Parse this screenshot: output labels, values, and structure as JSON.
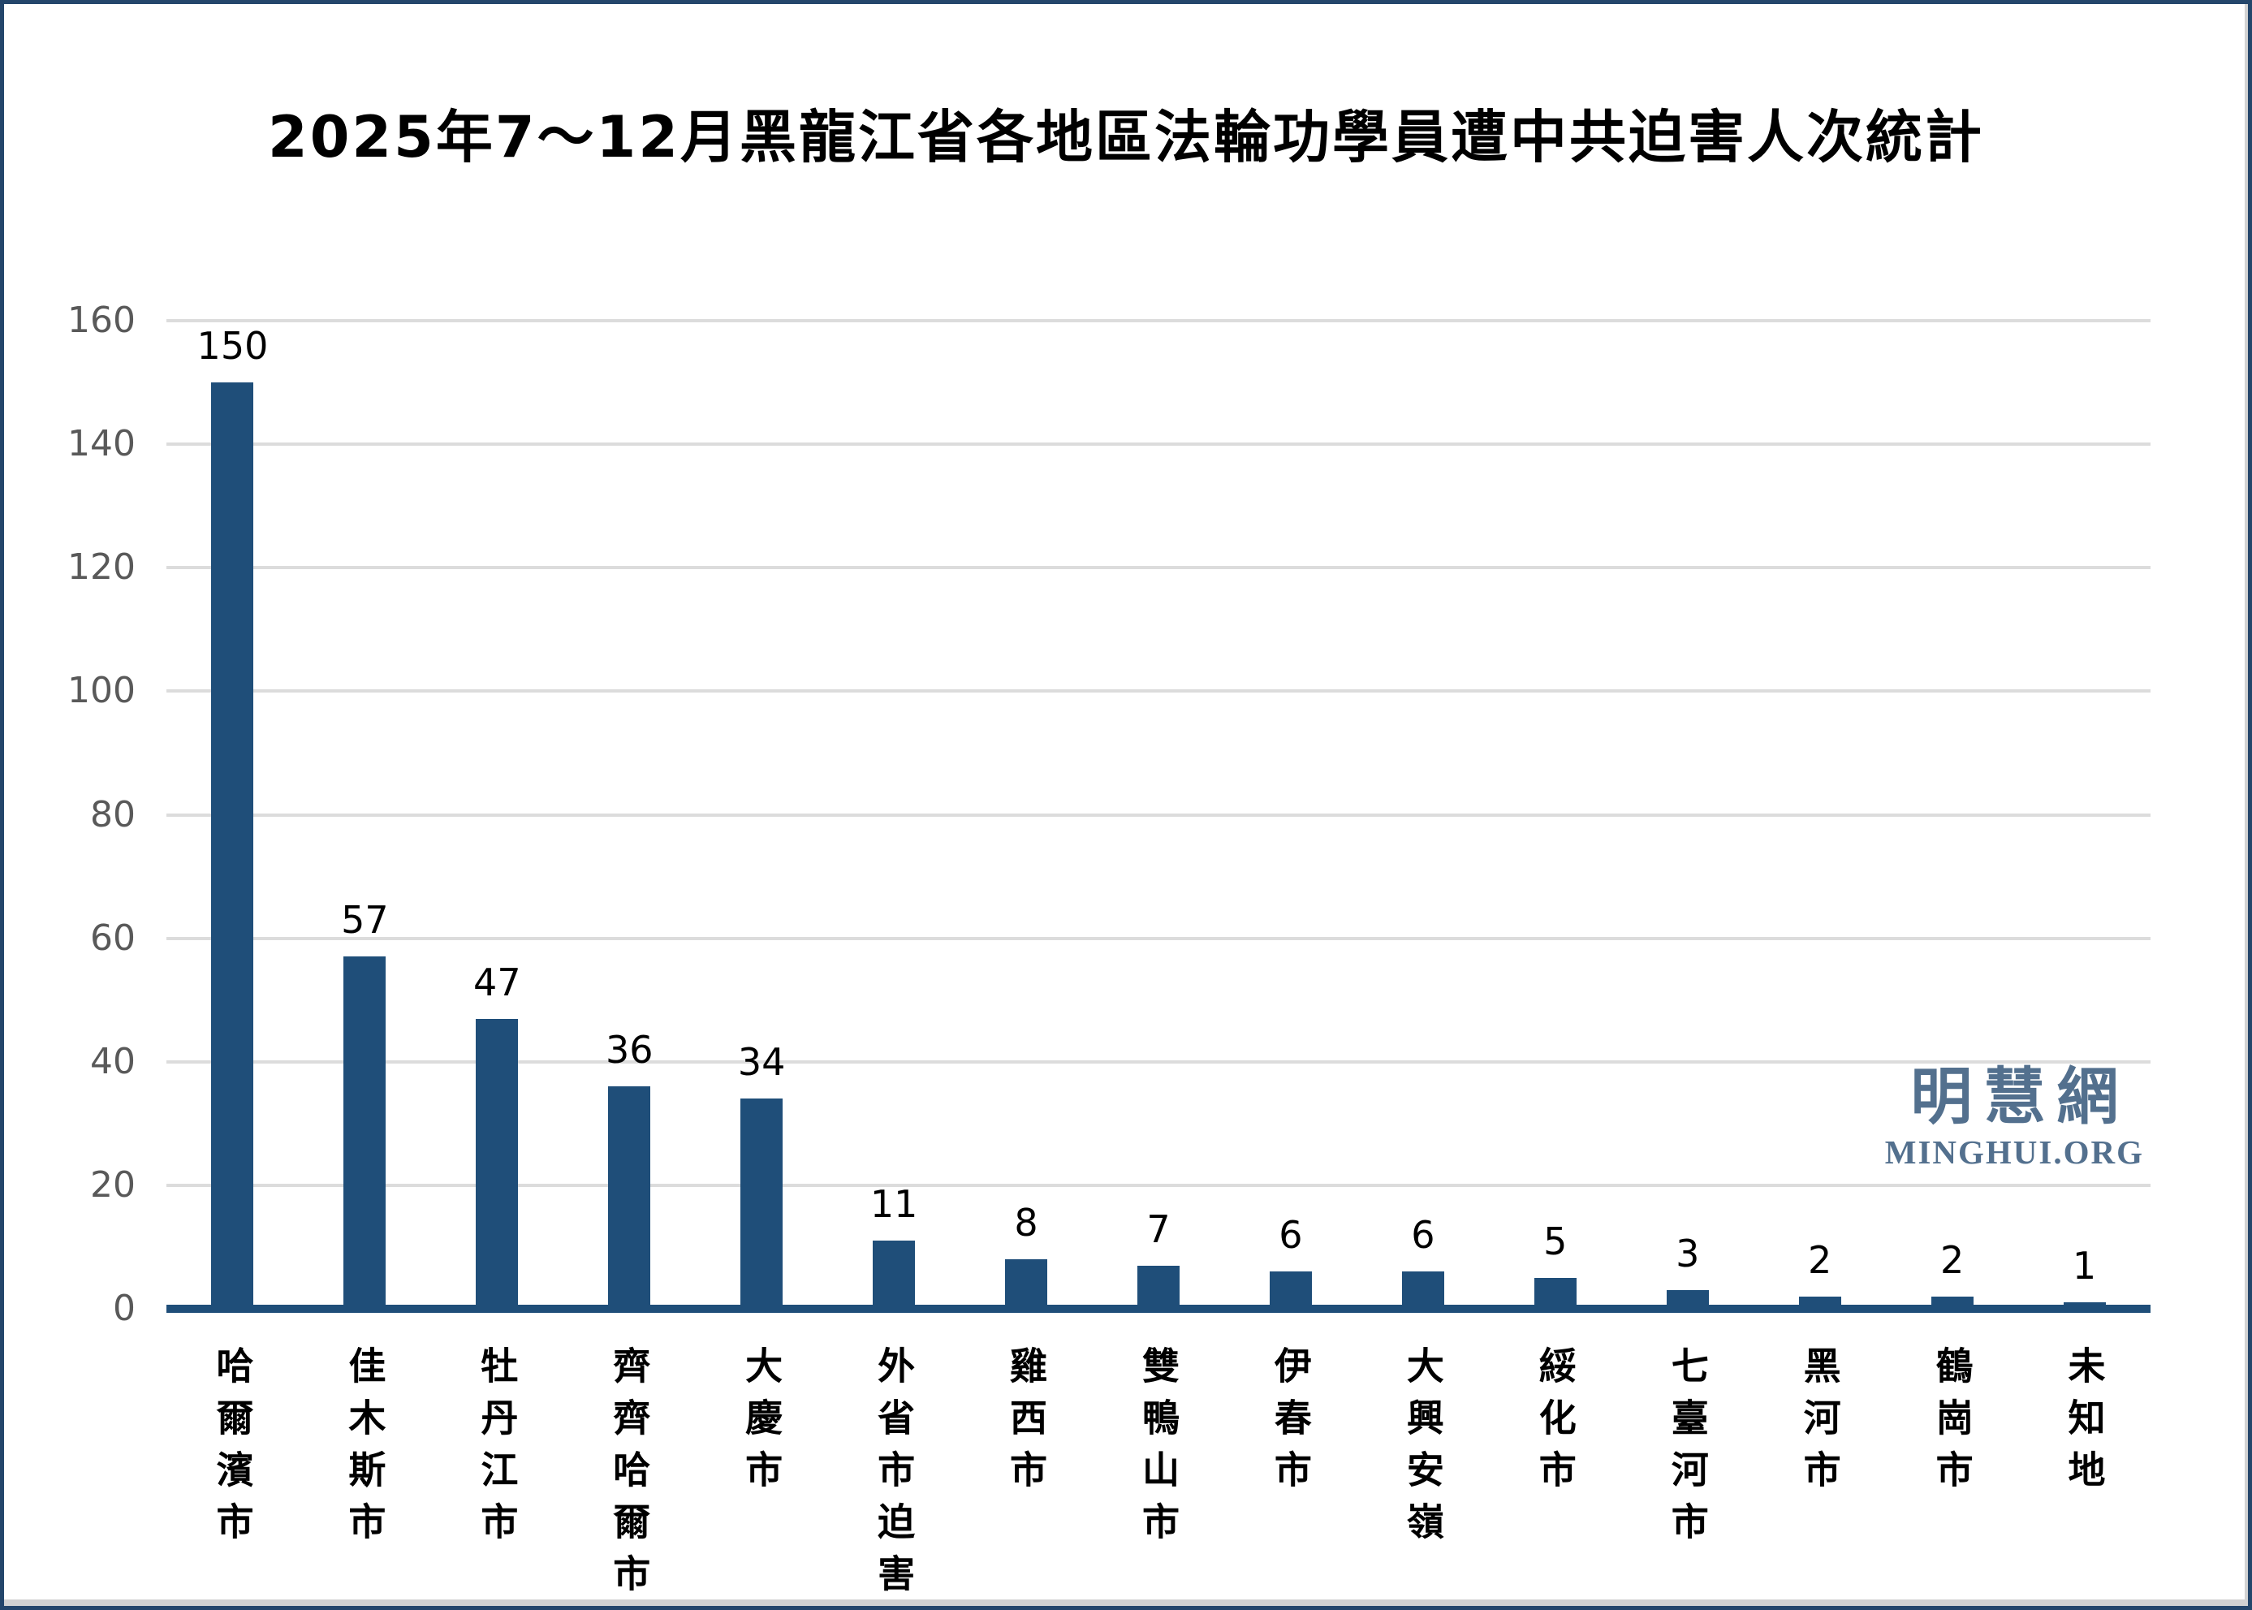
{
  "chart_data": {
    "type": "bar",
    "title": "2025年7～12月黑龍江省各地區法輪功學員遭中共迫害人次統計",
    "categories": [
      "哈爾濱市",
      "佳木斯市",
      "牡丹江市",
      "齊齊哈爾市",
      "大慶市",
      "外省市迫害",
      "雞西市",
      "雙鴨山市",
      "伊春市",
      "大興安嶺",
      "綏化市",
      "七臺河市",
      "黑河市",
      "鶴崗市",
      "未知地"
    ],
    "values": [
      150,
      57,
      47,
      36,
      34,
      11,
      8,
      7,
      6,
      6,
      5,
      3,
      2,
      2,
      1
    ],
    "xlabel": "",
    "ylabel": "",
    "ylim": [
      0,
      160
    ],
    "yticks": [
      0,
      20,
      40,
      60,
      80,
      100,
      120,
      140,
      160
    ],
    "grid": true,
    "legend": "none",
    "bar_color": "#1f4e79",
    "axis_line_color": "#1f4e79",
    "gridline_color": "#dcdcdc",
    "y_tick_label_color": "#595959",
    "value_label_color": "#000000"
  },
  "watermark": {
    "cjk": "明慧網",
    "latin": "MINGHUI.ORG",
    "color": "#53708e"
  },
  "frame": {
    "border_color": "#24466b",
    "background_color": "#ffffff"
  }
}
